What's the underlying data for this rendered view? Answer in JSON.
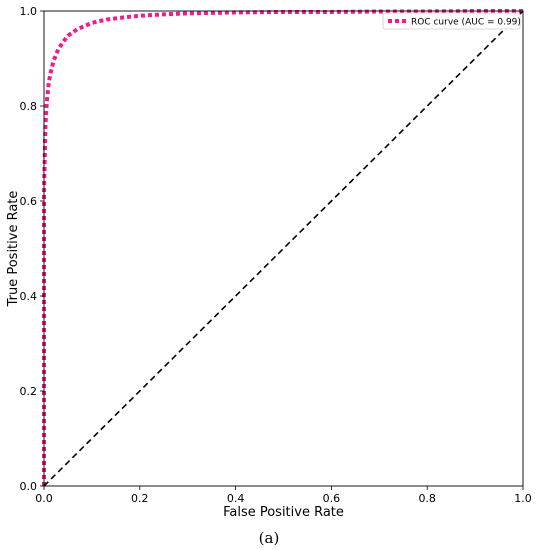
{
  "chart_data": {
    "type": "line",
    "title": "",
    "xlabel": "False Positive Rate",
    "ylabel": "True Positive Rate",
    "xlim": [
      0.0,
      1.0
    ],
    "ylim": [
      0.0,
      1.0
    ],
    "xticks": [
      "0.0",
      "0.2",
      "0.4",
      "0.6",
      "0.8",
      "1.0"
    ],
    "yticks": [
      "0.0",
      "0.2",
      "0.4",
      "0.6",
      "0.8",
      "1.0"
    ],
    "grid": false,
    "legend": {
      "placement": "top-right",
      "entries": [
        "ROC curve (AUC = 0.99)"
      ]
    },
    "series": [
      {
        "name": "ROC curve (AUC = 0.99)",
        "color": "#ee1b8a",
        "style": "dotted",
        "x": [
          0.0,
          0.0,
          0.003,
          0.006,
          0.01,
          0.015,
          0.02,
          0.03,
          0.04,
          0.05,
          0.07,
          0.1,
          0.13,
          0.17,
          0.2,
          0.25,
          0.3,
          0.4,
          0.5,
          0.6,
          0.7,
          0.8,
          0.9,
          1.0
        ],
        "y": [
          0.0,
          0.62,
          0.76,
          0.81,
          0.85,
          0.875,
          0.895,
          0.92,
          0.935,
          0.948,
          0.962,
          0.975,
          0.982,
          0.987,
          0.99,
          0.993,
          0.995,
          0.997,
          0.998,
          0.998,
          0.999,
          0.999,
          1.0,
          1.0
        ]
      },
      {
        "name": "",
        "color": "#000000",
        "style": "dashed",
        "x": [
          0.0,
          1.0
        ],
        "y": [
          0.0,
          1.0
        ]
      }
    ]
  },
  "caption": "(a)"
}
